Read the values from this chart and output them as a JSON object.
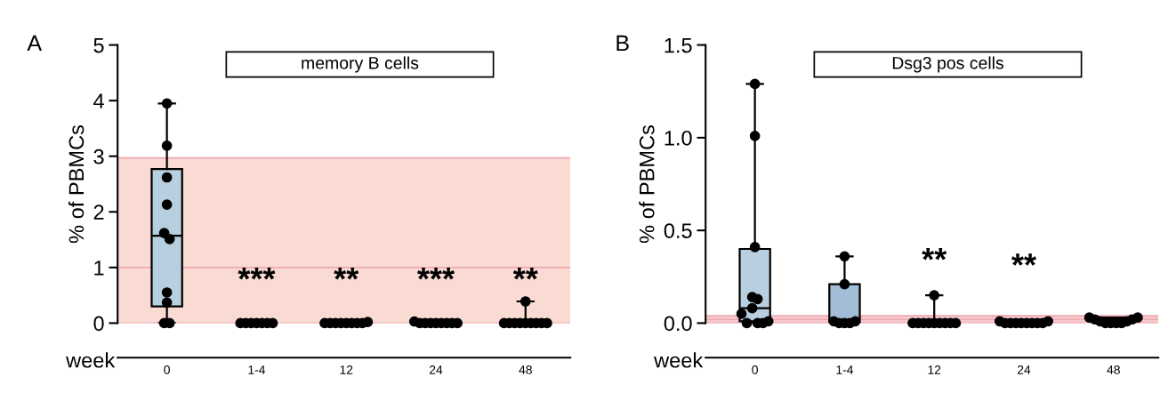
{
  "chart_data": [
    {
      "type": "box",
      "title": "memory B cells",
      "ylabel": "% of PBMCs",
      "xlabel": "week",
      "categories": [
        "0",
        "1-4",
        "12",
        "24",
        "48"
      ],
      "ylim": [
        0,
        5
      ],
      "yticks": [
        0,
        1,
        2,
        3,
        4,
        5
      ],
      "boxes": [
        {
          "low": 0,
          "q1": 0.3,
          "median": 1.57,
          "q3": 2.77,
          "high": 3.95
        },
        null,
        null,
        null,
        {
          "low": 0,
          "q1": 0,
          "median": 0,
          "q3": 0,
          "high": 0.39
        }
      ],
      "colors": [
        "#b8cfdf",
        "#b8cfdf",
        "#b8cfdf",
        "#b8cfdf",
        "#b8cfdf"
      ],
      "series": [
        {
          "type": "scatter",
          "color": "#000000",
          "x": [
            "0",
            "0",
            "0",
            "0",
            "0",
            "0",
            "0",
            "0",
            "0",
            "0",
            "1-4",
            "1-4",
            "1-4",
            "1-4",
            "1-4",
            "1-4",
            "1-4",
            "12",
            "12",
            "12",
            "12",
            "12",
            "12",
            "12",
            "12",
            "12",
            "24",
            "24",
            "24",
            "24",
            "24",
            "24",
            "24",
            "24",
            "24",
            "48",
            "48",
            "48",
            "48",
            "48",
            "48",
            "48",
            "48",
            "48",
            "48"
          ],
          "values": [
            3.95,
            3.19,
            2.62,
            2.13,
            1.62,
            1.51,
            0.55,
            0.37,
            0,
            0,
            0,
            0,
            0,
            0,
            0,
            0,
            0,
            0,
            0,
            0,
            0,
            0,
            0,
            0,
            0,
            0.02,
            0.03,
            0,
            0,
            0,
            0,
            0,
            0,
            0,
            0,
            0,
            0,
            0,
            0,
            0.39,
            0,
            0,
            0,
            0,
            0
          ]
        }
      ],
      "bands": [
        {
          "axis": "y",
          "from": 0,
          "to": 2.97,
          "color": "#fadbd4"
        }
      ],
      "ref_lines": [
        {
          "axis": "y",
          "value": 1,
          "color": "#eea9b3",
          "line_style": "solid"
        },
        {
          "axis": "y",
          "value": 2.97,
          "color": "#eea9b3",
          "line_style": "solid"
        },
        {
          "axis": "y",
          "value": 0,
          "color": "#eea9b3",
          "line_style": "solid"
        }
      ],
      "annotations": [
        "A",
        "***",
        "**",
        "***",
        "**"
      ],
      "legend": false,
      "grid": false
    },
    {
      "type": "box",
      "title": "Dsg3 pos cells",
      "ylabel": "% of PBMCs",
      "xlabel": "week",
      "categories": [
        "0",
        "1-4",
        "12",
        "24",
        "48"
      ],
      "ylim": [
        0,
        1.5
      ],
      "yticks": [
        {
          "value": 0,
          "label": "0.0"
        },
        {
          "value": 0.5,
          "label": "0.5"
        },
        {
          "value": 1,
          "label": "1.0"
        },
        1.5
      ],
      "boxes": [
        {
          "low": 0,
          "q1": 0.01,
          "median": 0.08,
          "q3": 0.4,
          "high": 1.29
        },
        {
          "low": 0,
          "q1": 0.005,
          "median": 0.005,
          "q3": 0.21,
          "high": 0.36
        },
        {
          "low": 0,
          "q1": 0,
          "median": 0,
          "q3": 0,
          "high": 0.15
        },
        {
          "low": 0,
          "q1": 0,
          "median": 0,
          "q3": 0,
          "high": 0.01
        },
        {
          "low": 0,
          "q1": 0.005,
          "median": 0.02,
          "q3": 0.03,
          "high": 0.03
        }
      ],
      "colors": [
        "#b8cfdf",
        "#a3bdd6",
        "#b8cfdf",
        "#b8cfdf",
        "#b8cfdf"
      ],
      "series": [
        {
          "type": "scatter",
          "color": "#000000",
          "x": [
            "0",
            "0",
            "0",
            "0",
            "0",
            "0",
            "0",
            "0",
            "0",
            "0",
            "0",
            "1-4",
            "1-4",
            "1-4",
            "1-4",
            "1-4",
            "1-4",
            "1-4",
            "12",
            "12",
            "12",
            "12",
            "12",
            "12",
            "12",
            "12",
            "12",
            "12",
            "24",
            "24",
            "24",
            "24",
            "24",
            "24",
            "24",
            "24",
            "24",
            "24",
            "48",
            "48",
            "48",
            "48",
            "48",
            "48",
            "48",
            "48",
            "48",
            "48"
          ],
          "values": [
            0.05,
            0.14,
            0,
            0.13,
            0.41,
            1.29,
            1.01,
            0.08,
            0,
            0,
            0.01,
            0.01,
            0,
            0.21,
            0.36,
            0,
            0,
            0.01,
            0,
            0,
            0,
            0,
            0.15,
            0,
            0,
            0,
            0,
            0,
            0.01,
            0,
            0,
            0,
            0,
            0,
            0,
            0,
            0,
            0.01,
            0.03,
            0.02,
            0.01,
            0,
            0,
            0,
            0,
            0.01,
            0.02,
            0.03
          ]
        }
      ],
      "bands": [
        {
          "axis": "y",
          "from": 0,
          "to": 0.04,
          "color": "#f6c9cb"
        }
      ],
      "ref_lines": [
        {
          "axis": "y",
          "value": 0.02,
          "color": "#eea9b3",
          "line_style": "solid"
        },
        {
          "axis": "y",
          "value": 0.04,
          "color": "#eea9b3",
          "line_style": "solid"
        },
        {
          "axis": "y",
          "value": 0,
          "color": "#eea9b3",
          "line_style": "solid"
        }
      ],
      "annotations": [
        "B",
        "**",
        "**"
      ],
      "legend": false,
      "grid": false
    }
  ]
}
